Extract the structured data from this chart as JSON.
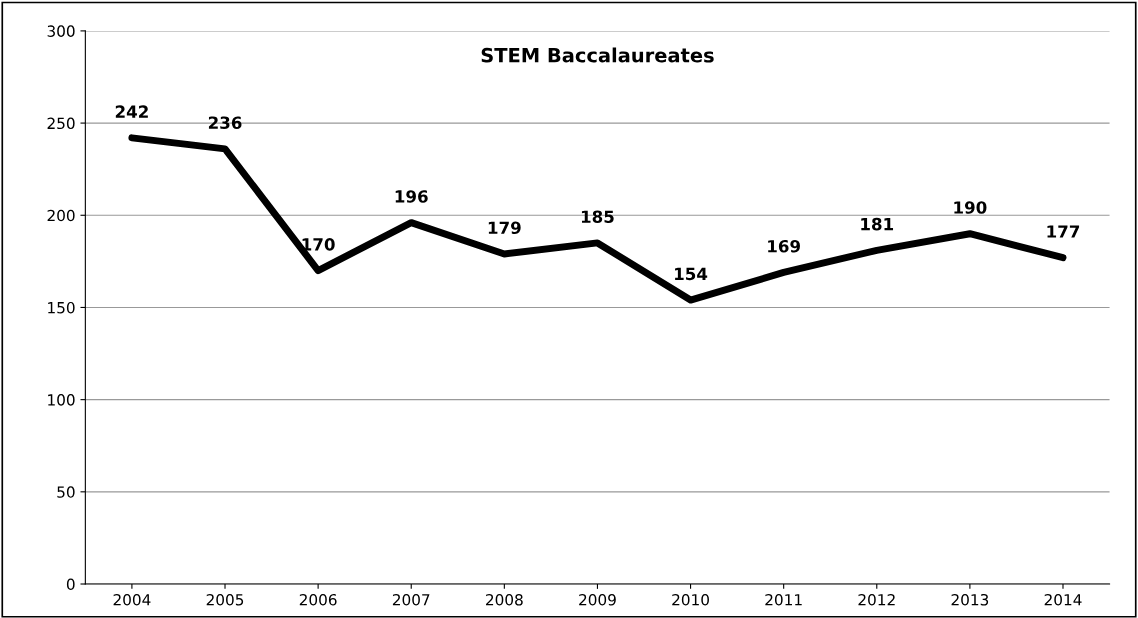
{
  "chart_data": {
    "type": "line",
    "title": "STEM Baccalaureates",
    "categories": [
      "2004",
      "2005",
      "2006",
      "2007",
      "2008",
      "2009",
      "2010",
      "2011",
      "2012",
      "2013",
      "2014"
    ],
    "series": [
      {
        "color": "#000000",
        "values": [
          242,
          236,
          170,
          196,
          179,
          185,
          154,
          169,
          181,
          190,
          177
        ]
      }
    ],
    "ylim": [
      0,
      300
    ],
    "yticks": [
      0,
      50,
      100,
      150,
      200,
      250,
      300
    ],
    "grid": "y",
    "data_labels": true,
    "marker": "none",
    "line_style": "solid",
    "legend": false
  }
}
